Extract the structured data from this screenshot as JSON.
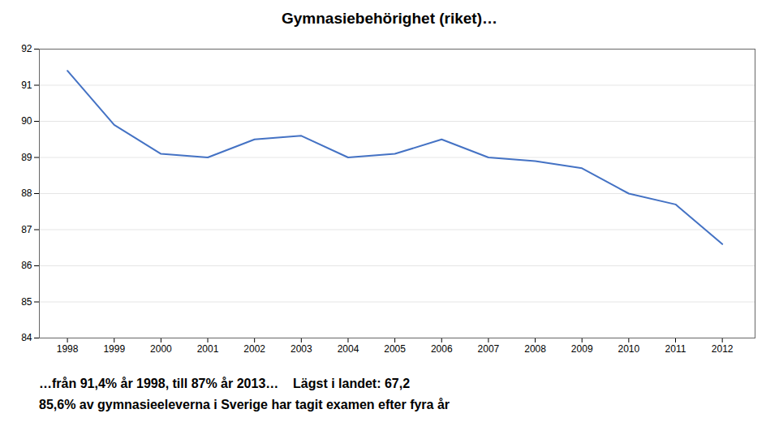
{
  "chart_data": {
    "type": "line",
    "title": "Gymnasiebehörighet (riket)…",
    "subtitle": [
      "…från 91,4% år 1998, till 87% år 2013…    Lägst i landet: 67,2",
      "85,6% av gymnasieeleverna i Sverige har tagit examen efter fyra år"
    ],
    "x": [
      1998,
      1999,
      2000,
      2001,
      2002,
      2003,
      2004,
      2005,
      2006,
      2007,
      2008,
      2009,
      2010,
      2011,
      2012
    ],
    "values": [
      91.4,
      89.9,
      89.1,
      89.0,
      89.5,
      89.6,
      89.0,
      89.1,
      89.5,
      89.0,
      88.9,
      88.7,
      88.0,
      87.7,
      86.6
    ],
    "color": "#4472C4",
    "xlim": [
      1997.4,
      2012.7
    ],
    "xticks": [
      1998,
      1999,
      2000,
      2001,
      2002,
      2003,
      2004,
      2005,
      2006,
      2007,
      2008,
      2009,
      2010,
      2011,
      2012
    ],
    "ylim": [
      84,
      92
    ],
    "yticks": [
      84,
      85,
      86,
      87,
      88,
      89,
      90,
      91,
      92
    ],
    "grid": true
  }
}
